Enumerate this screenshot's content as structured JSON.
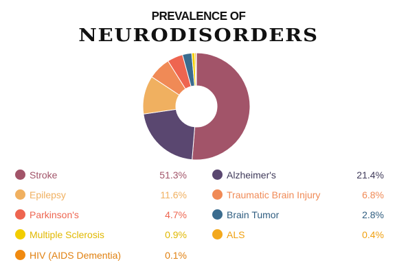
{
  "title_line1": "PREVALENCE OF",
  "title_line2": "NEURODISORDERS",
  "chart_data": {
    "type": "pie",
    "donut": true,
    "title": "PREVALENCE OF NEURODISORDERS",
    "legend_placement": "bottom",
    "slices": [
      {
        "label": "Stroke",
        "value": 51.3,
        "display": "51.3%",
        "color": "#a25469",
        "text_color": "#a25469"
      },
      {
        "label": "Alzheimer's",
        "value": 21.4,
        "display": "21.4%",
        "color": "#5a4770",
        "text_color": "#3f3a5a"
      },
      {
        "label": "Epilepsy",
        "value": 11.6,
        "display": "11.6%",
        "color": "#f0b060",
        "text_color": "#f0b060"
      },
      {
        "label": "Traumatic Brain Injury",
        "value": 6.8,
        "display": "6.8%",
        "color": "#f08a56",
        "text_color": "#f08a56"
      },
      {
        "label": "Parkinson's",
        "value": 4.7,
        "display": "4.7%",
        "color": "#ee6550",
        "text_color": "#ee6550"
      },
      {
        "label": "Brain Tumor",
        "value": 2.8,
        "display": "2.8%",
        "color": "#3b6c8f",
        "text_color": "#2f5d80"
      },
      {
        "label": "Multiple Sclerosis",
        "value": 0.9,
        "display": "0.9%",
        "color": "#f2cd00",
        "text_color": "#e0b800"
      },
      {
        "label": "ALS",
        "value": 0.4,
        "display": "0.4%",
        "color": "#f3a81c",
        "text_color": "#f0a010"
      },
      {
        "label": "HIV (AIDS Dementia)",
        "value": 0.1,
        "display": "0.1%",
        "color": "#f08a10",
        "text_color": "#e08010"
      }
    ]
  }
}
